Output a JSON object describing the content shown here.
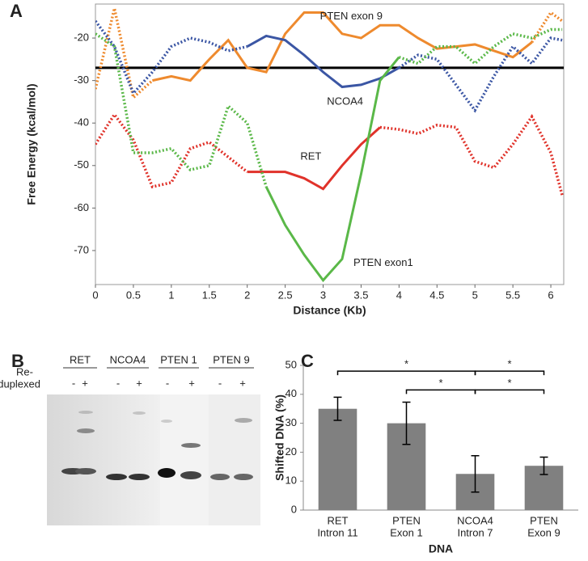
{
  "panel_labels": [
    "A",
    "B",
    "C"
  ],
  "chart_data": [
    {
      "type": "line",
      "xlabel": "Distance (Kb)",
      "ylabel": "Free Energy (kcal/mol)",
      "x": [
        0,
        0.25,
        0.5,
        0.75,
        1,
        1.25,
        1.5,
        1.75,
        2,
        2.25,
        2.5,
        2.75,
        3,
        3.25,
        3.5,
        3.75,
        4,
        4.25,
        4.5,
        4.75,
        5,
        5.25,
        5.5,
        5.75,
        6,
        6.15
      ],
      "xlim": [
        0,
        6.17
      ],
      "xticks": [
        0,
        0.5,
        1,
        1.5,
        2,
        2.5,
        3,
        3.5,
        4,
        4.5,
        5,
        5.5,
        6
      ],
      "ylim": [
        -78,
        -12
      ],
      "yticks": [
        -70,
        -60,
        -50,
        -40,
        -30,
        -20
      ],
      "reference_line": -27,
      "series": [
        {
          "name": "PTEN exon 9",
          "color": "#ee8a2e",
          "solid_x": [
            0.75,
            5.8
          ],
          "values": [
            -32,
            -13,
            -34,
            -30,
            -29,
            -30,
            -25,
            -20.5,
            -27,
            -28,
            -19,
            -14,
            -14,
            -19,
            -20,
            -17,
            -17,
            -20,
            -22.5,
            -22,
            -21.5,
            -23,
            -24.5,
            -21,
            -14,
            -16
          ]
        },
        {
          "name": "NCOA4",
          "color": "#3b56a4",
          "solid_x": [
            1.9,
            3.9
          ],
          "values": [
            -16,
            -22,
            -33,
            -28,
            -22,
            -20,
            -21,
            -23,
            -22,
            -19.5,
            -20.5,
            -24,
            -28,
            -31.5,
            -31,
            -29.5,
            -27,
            -24,
            -25,
            -31,
            -37,
            -29,
            -22,
            -26,
            -20,
            -20.5
          ]
        },
        {
          "name": "RET",
          "color": "#e0322a",
          "solid_x": [
            2.0,
            3.85
          ],
          "values": [
            -45,
            -38,
            -44,
            -55,
            -54,
            -46,
            -44.5,
            -48,
            -51.5,
            -51.5,
            -51.5,
            -53,
            -55.5,
            -50,
            -45,
            -41,
            -41.5,
            -42.5,
            -40.5,
            -41,
            -49,
            -50.5,
            -45,
            -38.5,
            -47,
            -57
          ]
        },
        {
          "name": "PTEN exon1",
          "color": "#5ab848",
          "solid_x": [
            2.35,
            3.95
          ],
          "values": [
            -19,
            -22,
            -47,
            -47,
            -46,
            -51,
            -50,
            -36,
            -40,
            -55,
            -64,
            -71,
            -77,
            -72,
            -52,
            -30,
            -24.5,
            -26,
            -22,
            -22,
            -26,
            -22,
            -19,
            -20,
            -18,
            -18
          ]
        }
      ]
    },
    {
      "type": "bar",
      "xlabel": "DNA",
      "ylabel": "Shifted DNA (%)",
      "categories": [
        [
          "RET",
          "Intron 11"
        ],
        [
          "PTEN",
          "Exon 1"
        ],
        [
          "NCOA4",
          "Intron 7"
        ],
        [
          "PTEN",
          "Exon 9"
        ]
      ],
      "values": [
        35,
        30,
        12.5,
        15.3
      ],
      "errors": [
        4,
        7.3,
        6.3,
        3
      ],
      "color": "#808080",
      "ylim": [
        0,
        50
      ],
      "yticks": [
        0,
        10,
        20,
        30,
        40,
        50
      ],
      "significance": [
        {
          "pair": [
            0,
            2
          ],
          "label": "*"
        },
        {
          "pair": [
            2,
            3
          ],
          "label": "*"
        },
        {
          "pair": [
            1,
            2
          ],
          "label": "*"
        },
        {
          "pair": [
            2,
            3
          ],
          "label": "*"
        }
      ]
    }
  ],
  "gel": {
    "lanes": [
      "RET",
      "NCOA4",
      "PTEN 1",
      "PTEN 9"
    ],
    "row_label": [
      "Re-",
      "duplexed"
    ],
    "signs": [
      "-",
      "+"
    ]
  }
}
